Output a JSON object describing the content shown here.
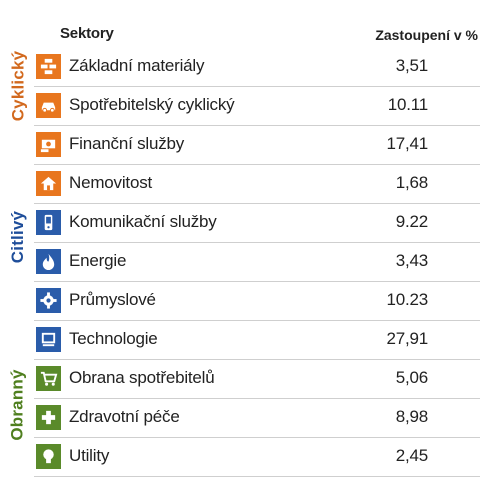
{
  "header": {
    "sector_label": "Sektory",
    "value_label": "Zastoupení v %"
  },
  "groups": [
    {
      "label": "Cyklický",
      "color": "#d2691e"
    },
    {
      "label": "Citlivý",
      "color": "#1f4e9a"
    },
    {
      "label": "Obranný",
      "color": "#4f7f1f"
    }
  ],
  "chart_data": {
    "type": "table",
    "columns": [
      "Sektory",
      "Zastoupení v %"
    ],
    "rows": [
      {
        "name": "Základní materiály",
        "value": "3,51",
        "group": "Cyklický",
        "icon": "bricks-icon",
        "color": "#e8761e"
      },
      {
        "name": "Spotřebitelský cyklický",
        "value": "10.11",
        "group": "Cyklický",
        "icon": "car-icon",
        "color": "#e8761e"
      },
      {
        "name": "Finanční služby",
        "value": "17,41",
        "group": "Cyklický",
        "icon": "money-icon",
        "color": "#e8761e"
      },
      {
        "name": "Nemovitost",
        "value": "1,68",
        "group": "Cyklický",
        "icon": "house-icon",
        "color": "#e8761e"
      },
      {
        "name": "Komunikační služby",
        "value": "9.22",
        "group": "Citlivý",
        "icon": "phone-icon",
        "color": "#2a5caa"
      },
      {
        "name": "Energie",
        "value": "3,43",
        "group": "Citlivý",
        "icon": "flame-icon",
        "color": "#2a5caa"
      },
      {
        "name": "Průmyslové",
        "value": "10.23",
        "group": "Citlivý",
        "icon": "gear-icon",
        "color": "#2a5caa"
      },
      {
        "name": "Technologie",
        "value": "27,91",
        "group": "Citlivý",
        "icon": "computer-icon",
        "color": "#2a5caa"
      },
      {
        "name": "Obrana spotřebitelů",
        "value": "5,06",
        "group": "Obranný",
        "icon": "cart-icon",
        "color": "#5a8a2a"
      },
      {
        "name": "Zdravotní péče",
        "value": "8,98",
        "group": "Obranný",
        "icon": "cross-icon",
        "color": "#5a8a2a"
      },
      {
        "name": "Utility",
        "value": "2,45",
        "group": "Obranný",
        "icon": "bulb-icon",
        "color": "#5a8a2a"
      }
    ]
  }
}
